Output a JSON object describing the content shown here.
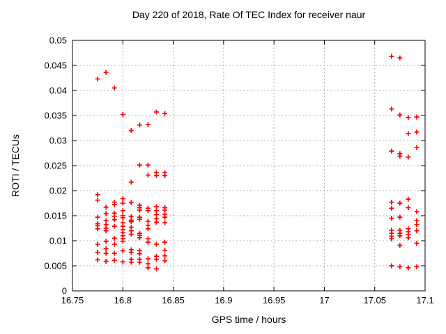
{
  "chart_data": {
    "type": "scatter",
    "title": "Day 220 of 2018, Rate Of TEC Index for receiver naur",
    "xlabel": "GPS time / hours",
    "ylabel": "ROTI / TECUs",
    "xlim": [
      16.75,
      17.1
    ],
    "ylim": [
      0,
      0.05
    ],
    "xticks": [
      16.75,
      16.8,
      16.85,
      16.9,
      16.95,
      17.0,
      17.05,
      17.1
    ],
    "xtick_labels": [
      "16.75",
      "16.8",
      "16.85",
      "16.9",
      "16.95",
      "17",
      "17.05",
      "17.1"
    ],
    "yticks": [
      0,
      0.005,
      0.01,
      0.015,
      0.02,
      0.025,
      0.03,
      0.035,
      0.04,
      0.045,
      0.05
    ],
    "ytick_labels": [
      "0",
      "0.005",
      "0.01",
      "0.015",
      "0.02",
      "0.025",
      "0.03",
      "0.035",
      "0.04",
      "0.045",
      "0.05"
    ],
    "grid": true,
    "legend": "none",
    "marker": {
      "shape": "plus",
      "color": "#ff0000",
      "size": 7
    },
    "colors": {
      "background": "#ffffff",
      "axis": "#000000",
      "grid": "#b0b0b0",
      "text": "#000000",
      "marker": "#ff0000"
    },
    "series": [
      {
        "name": "ROTI",
        "points": [
          [
            16.775,
            0.0423
          ],
          [
            16.775,
            0.0192
          ],
          [
            16.775,
            0.0181
          ],
          [
            16.775,
            0.0147
          ],
          [
            16.775,
            0.0134
          ],
          [
            16.775,
            0.013
          ],
          [
            16.775,
            0.0124
          ],
          [
            16.775,
            0.0093
          ],
          [
            16.775,
            0.0077
          ],
          [
            16.775,
            0.0062
          ],
          [
            16.7833,
            0.0436
          ],
          [
            16.7833,
            0.0167
          ],
          [
            16.7833,
            0.0154
          ],
          [
            16.7833,
            0.014
          ],
          [
            16.7833,
            0.0132
          ],
          [
            16.7833,
            0.0125
          ],
          [
            16.7833,
            0.012
          ],
          [
            16.7833,
            0.0099
          ],
          [
            16.7833,
            0.0084
          ],
          [
            16.7833,
            0.0075
          ],
          [
            16.7833,
            0.0059
          ],
          [
            16.7917,
            0.0405
          ],
          [
            16.7917,
            0.0177
          ],
          [
            16.7917,
            0.0172
          ],
          [
            16.7917,
            0.0155
          ],
          [
            16.7917,
            0.0149
          ],
          [
            16.7917,
            0.0142
          ],
          [
            16.7917,
            0.0129
          ],
          [
            16.7917,
            0.0105
          ],
          [
            16.7917,
            0.0093
          ],
          [
            16.7917,
            0.0075
          ],
          [
            16.7917,
            0.0061
          ],
          [
            16.8,
            0.0352
          ],
          [
            16.8,
            0.0184
          ],
          [
            16.8,
            0.0175
          ],
          [
            16.8,
            0.016
          ],
          [
            16.8,
            0.015
          ],
          [
            16.8,
            0.0146
          ],
          [
            16.8,
            0.0136
          ],
          [
            16.8,
            0.0129
          ],
          [
            16.8,
            0.0122
          ],
          [
            16.8,
            0.0116
          ],
          [
            16.8,
            0.011
          ],
          [
            16.8,
            0.0104
          ],
          [
            16.8,
            0.0099
          ],
          [
            16.8,
            0.008
          ],
          [
            16.8,
            0.0058
          ],
          [
            16.8083,
            0.032
          ],
          [
            16.8083,
            0.0217
          ],
          [
            16.8083,
            0.0176
          ],
          [
            16.8083,
            0.0148
          ],
          [
            16.8083,
            0.0141
          ],
          [
            16.8083,
            0.0138
          ],
          [
            16.8083,
            0.0127
          ],
          [
            16.8083,
            0.012
          ],
          [
            16.8083,
            0.0113
          ],
          [
            16.8083,
            0.0082
          ],
          [
            16.8083,
            0.0077
          ],
          [
            16.8083,
            0.0063
          ],
          [
            16.8083,
            0.0057
          ],
          [
            16.8167,
            0.0331
          ],
          [
            16.8167,
            0.0251
          ],
          [
            16.8167,
            0.0171
          ],
          [
            16.8167,
            0.0166
          ],
          [
            16.8167,
            0.0161
          ],
          [
            16.8167,
            0.0147
          ],
          [
            16.8167,
            0.0143
          ],
          [
            16.8167,
            0.0115
          ],
          [
            16.8167,
            0.0111
          ],
          [
            16.8167,
            0.0106
          ],
          [
            16.8167,
            0.008
          ],
          [
            16.8167,
            0.0074
          ],
          [
            16.8167,
            0.0063
          ],
          [
            16.8167,
            0.0057
          ],
          [
            16.825,
            0.0332
          ],
          [
            16.825,
            0.0251
          ],
          [
            16.825,
            0.0231
          ],
          [
            16.825,
            0.0165
          ],
          [
            16.825,
            0.016
          ],
          [
            16.825,
            0.0139
          ],
          [
            16.825,
            0.0131
          ],
          [
            16.825,
            0.0124
          ],
          [
            16.825,
            0.0104
          ],
          [
            16.825,
            0.0097
          ],
          [
            16.825,
            0.0064
          ],
          [
            16.825,
            0.0054
          ],
          [
            16.825,
            0.0046
          ],
          [
            16.8333,
            0.0357
          ],
          [
            16.8333,
            0.0236
          ],
          [
            16.8333,
            0.023
          ],
          [
            16.8333,
            0.0168
          ],
          [
            16.8333,
            0.016
          ],
          [
            16.8333,
            0.0152
          ],
          [
            16.8333,
            0.0144
          ],
          [
            16.8333,
            0.0137
          ],
          [
            16.8333,
            0.0093
          ],
          [
            16.8333,
            0.0069
          ],
          [
            16.8333,
            0.0063
          ],
          [
            16.8333,
            0.0044
          ],
          [
            16.8417,
            0.0354
          ],
          [
            16.8417,
            0.0236
          ],
          [
            16.8417,
            0.023
          ],
          [
            16.8417,
            0.0166
          ],
          [
            16.8417,
            0.0161
          ],
          [
            16.8417,
            0.0153
          ],
          [
            16.8417,
            0.0147
          ],
          [
            16.8417,
            0.0136
          ],
          [
            16.8417,
            0.0097
          ],
          [
            16.8417,
            0.0081
          ],
          [
            16.8417,
            0.007
          ],
          [
            16.8417,
            0.006
          ],
          [
            17.0667,
            0.0468
          ],
          [
            17.0667,
            0.0363
          ],
          [
            17.0667,
            0.0279
          ],
          [
            17.0667,
            0.0177
          ],
          [
            17.0667,
            0.0165
          ],
          [
            17.0667,
            0.0145
          ],
          [
            17.0667,
            0.0121
          ],
          [
            17.0667,
            0.0115
          ],
          [
            17.0667,
            0.0109
          ],
          [
            17.0667,
            0.0104
          ],
          [
            17.0667,
            0.005
          ],
          [
            17.075,
            0.0465
          ],
          [
            17.075,
            0.0351
          ],
          [
            17.075,
            0.0274
          ],
          [
            17.075,
            0.0269
          ],
          [
            17.075,
            0.0175
          ],
          [
            17.075,
            0.0147
          ],
          [
            17.075,
            0.0121
          ],
          [
            17.075,
            0.0115
          ],
          [
            17.075,
            0.011
          ],
          [
            17.075,
            0.0091
          ],
          [
            17.075,
            0.0048
          ],
          [
            17.0833,
            0.0346
          ],
          [
            17.0833,
            0.0314
          ],
          [
            17.0833,
            0.0267
          ],
          [
            17.0833,
            0.0183
          ],
          [
            17.0833,
            0.0166
          ],
          [
            17.0833,
            0.0124
          ],
          [
            17.0833,
            0.0118
          ],
          [
            17.0833,
            0.0112
          ],
          [
            17.0833,
            0.0106
          ],
          [
            17.0833,
            0.0046
          ],
          [
            17.0917,
            0.0347
          ],
          [
            17.0917,
            0.0317
          ],
          [
            17.0917,
            0.0286
          ],
          [
            17.0917,
            0.0158
          ],
          [
            17.0917,
            0.014
          ],
          [
            17.0917,
            0.0132
          ],
          [
            17.0917,
            0.012
          ],
          [
            17.0917,
            0.0095
          ],
          [
            17.0917,
            0.0048
          ]
        ]
      }
    ]
  }
}
